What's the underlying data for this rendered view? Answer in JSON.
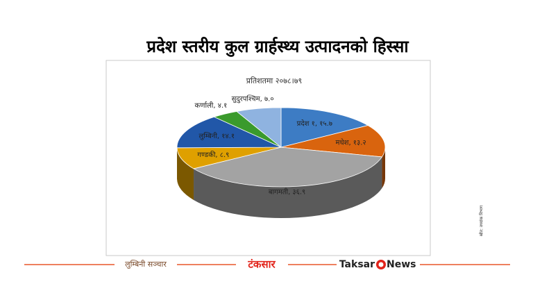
{
  "chart_data": {
    "type": "pie",
    "title": "प्रदेश स्तरीय कुल ग्रार्हस्थ्य उत्पादनको हिस्सा",
    "subtitle": "प्रतिशतमा २०७८।७९",
    "values": [
      15.7,
      13.2,
      36.9,
      8.9,
      14.1,
      4.1,
      7.0
    ],
    "value_labels": [
      "प्रदेश १, १५.७",
      "मधेश, १३.२",
      "बागमती, ३६.९",
      "गण्डकी, ८.९",
      "लुम्बिनी, १४.१",
      "कर्णाली, ४.१",
      "सुदुरपश्चिम, ७.०"
    ],
    "colors": [
      "#3d7cc4",
      "#d9640e",
      "#a3a3a3",
      "#dfa000",
      "#2157a8",
      "#3a9a2c",
      "#8fb3e0"
    ]
  },
  "source": "स्रोत: तथ्यांक विभाग",
  "footer": {
    "left": "लुम्बिनी सञ्चार",
    "center": "टंकसार",
    "right_a": "Taksar",
    "right_b": "News"
  }
}
